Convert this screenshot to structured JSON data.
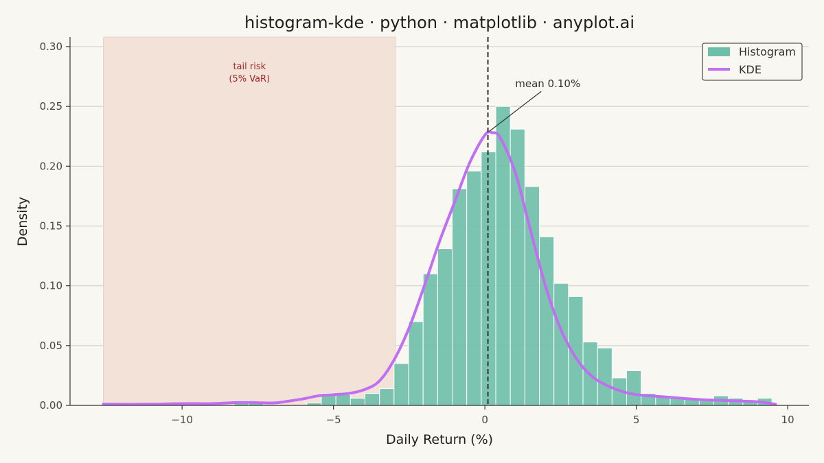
{
  "chart_data": {
    "type": "bar",
    "title": "histogram-kde · python · matplotlib · anyplot.ai",
    "xlabel": "Daily Return (%)",
    "ylabel": "Density",
    "xlim": [
      -13.7,
      10.7
    ],
    "ylim": [
      0,
      0.308
    ],
    "xticks": [
      -10,
      -5,
      0,
      5,
      10
    ],
    "xtick_labels": [
      "−10",
      "−5",
      "0",
      "5",
      "10"
    ],
    "yticks": [
      0.0,
      0.05,
      0.1,
      0.15,
      0.2,
      0.25,
      0.3
    ],
    "ytick_labels": [
      "0.00",
      "0.05",
      "0.10",
      "0.15",
      "0.20",
      "0.25",
      "0.30"
    ],
    "grid": "horizontal",
    "legend_position": "top-right",
    "colors": {
      "histogram": "#6dbfa9",
      "kde": "#c06ff0",
      "tail_band": "#f3e2d8",
      "tail_text": "#a0262a",
      "mean_line": "#333333",
      "background": "#f9f7f1"
    },
    "histogram": {
      "name": "Histogram",
      "bin_edges": [
        -12.6,
        -12.12,
        -11.64,
        -11.16,
        -10.68,
        -10.2,
        -9.72,
        -9.24,
        -8.76,
        -8.28,
        -7.8,
        -7.32,
        -6.84,
        -6.36,
        -5.88,
        -5.4,
        -4.92,
        -4.44,
        -3.96,
        -3.48,
        -3.0,
        -2.52,
        -2.04,
        -1.56,
        -1.08,
        -0.6,
        -0.12,
        0.36,
        0.84,
        1.32,
        1.8,
        2.28,
        2.76,
        3.24,
        3.72,
        4.2,
        4.68,
        5.16,
        5.64,
        6.12,
        6.6,
        7.08,
        7.56,
        8.04,
        8.52,
        9.0,
        9.48
      ],
      "densities": [
        0.0,
        0.0,
        0.0,
        0.0,
        0.0,
        0.0,
        0.0,
        0.0,
        0.0,
        0.004,
        0.002,
        0.0,
        0.0,
        0.0,
        0.002,
        0.01,
        0.009,
        0.006,
        0.01,
        0.014,
        0.035,
        0.07,
        0.11,
        0.131,
        0.181,
        0.196,
        0.212,
        0.25,
        0.231,
        0.183,
        0.141,
        0.102,
        0.091,
        0.053,
        0.048,
        0.023,
        0.029,
        0.01,
        0.008,
        0.006,
        0.005,
        0.005,
        0.008,
        0.006,
        0.003,
        0.006,
        0.001
      ]
    },
    "kde": {
      "name": "KDE",
      "x": [
        -12.6,
        -11,
        -10,
        -9,
        -8,
        -7,
        -6.5,
        -6,
        -5.5,
        -5,
        -4.5,
        -4,
        -3.5,
        -3,
        -2.5,
        -2,
        -1.5,
        -1,
        -0.5,
        0,
        0.25,
        0.5,
        1,
        1.5,
        2,
        2.5,
        3,
        3.5,
        4,
        4.5,
        5,
        6,
        7,
        8,
        9,
        9.6
      ],
      "y": [
        0.001,
        0.001,
        0.0015,
        0.0015,
        0.0025,
        0.002,
        0.0035,
        0.0055,
        0.008,
        0.009,
        0.01,
        0.013,
        0.02,
        0.038,
        0.065,
        0.1,
        0.137,
        0.17,
        0.203,
        0.226,
        0.228,
        0.224,
        0.195,
        0.147,
        0.1,
        0.064,
        0.04,
        0.025,
        0.017,
        0.012,
        0.009,
        0.007,
        0.005,
        0.004,
        0.003,
        0.001
      ]
    },
    "mean": {
      "value": 0.1,
      "label": "mean 0.10%",
      "anchor": [
        0.1,
        0.228
      ],
      "label_at": [
        1.0,
        0.266
      ]
    },
    "tail_band": {
      "x_range": [
        -12.6,
        -2.95
      ],
      "label_line1": "tail risk",
      "label_line2": "(5% VaR)"
    },
    "legend": [
      "Histogram",
      "KDE"
    ]
  }
}
